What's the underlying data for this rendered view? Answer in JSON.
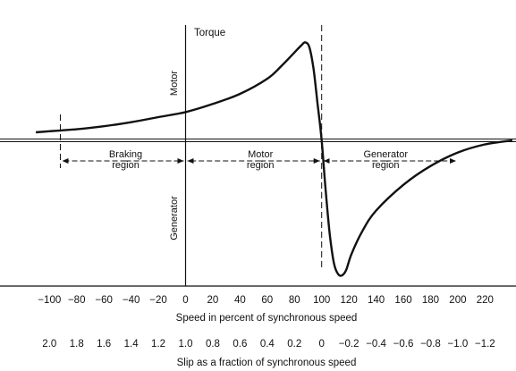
{
  "chart_data": {
    "type": "line",
    "title": "",
    "ylabel": "Torque",
    "quadrant_labels": {
      "top": "Motor",
      "bottom": "Generator"
    },
    "xlabel": "Speed in percent of synchronous speed",
    "xlim": [
      -110,
      240
    ],
    "ylim": [
      -1.0,
      1.0
    ],
    "x_ticks": [
      -100,
      -80,
      -60,
      -40,
      -20,
      0,
      20,
      40,
      60,
      80,
      100,
      120,
      140,
      160,
      180,
      200,
      220
    ],
    "secondary_xlabel": "Slip as a fraction of synchronous speed",
    "secondary_x_ticks": [
      {
        "speed": -100,
        "label": "2.0"
      },
      {
        "speed": -80,
        "label": "1.8"
      },
      {
        "speed": -60,
        "label": "1.6"
      },
      {
        "speed": -40,
        "label": "1.4"
      },
      {
        "speed": -20,
        "label": "1.2"
      },
      {
        "speed": 0,
        "label": "1.0"
      },
      {
        "speed": 20,
        "label": "0.8"
      },
      {
        "speed": 40,
        "label": "0.6"
      },
      {
        "speed": 60,
        "label": "0.4"
      },
      {
        "speed": 80,
        "label": "0.2"
      },
      {
        "speed": 100,
        "label": "0"
      },
      {
        "speed": 120,
        "label": "−0.2"
      },
      {
        "speed": 140,
        "label": "−0.4"
      },
      {
        "speed": 160,
        "label": "−0.6"
      },
      {
        "speed": 180,
        "label": "−0.8"
      },
      {
        "speed": 200,
        "label": "−1.0"
      },
      {
        "speed": 220,
        "label": "−1.2"
      }
    ],
    "regions": [
      {
        "line1": "Braking",
        "line2": "region",
        "from": -92,
        "to": 0,
        "center": -44
      },
      {
        "line1": "Motor",
        "line2": "region",
        "from": 0,
        "to": 100,
        "center": 55
      },
      {
        "line1": "Generator",
        "line2": "region",
        "from": 100,
        "to": 200,
        "center": 147
      }
    ],
    "series": [
      {
        "x": [
          -110,
          -100,
          -80,
          -60,
          -40,
          -20,
          0,
          20,
          40,
          60,
          70,
          80,
          85,
          88,
          91,
          94,
          97,
          100,
          103,
          106,
          109,
          112,
          115,
          118,
          122,
          130,
          140,
          160,
          180,
          200,
          220,
          240
        ],
        "y": [
          0.08,
          0.09,
          0.11,
          0.14,
          0.18,
          0.23,
          0.28,
          0.36,
          0.46,
          0.61,
          0.73,
          0.87,
          0.94,
          0.97,
          0.92,
          0.71,
          0.36,
          0.0,
          -0.38,
          -0.7,
          -0.91,
          -0.99,
          -1.0,
          -0.96,
          -0.84,
          -0.67,
          -0.52,
          -0.33,
          -0.19,
          -0.09,
          -0.03,
          0.0
        ]
      }
    ],
    "markers": [
      {
        "x": -92
      },
      {
        "x": 100
      }
    ]
  }
}
